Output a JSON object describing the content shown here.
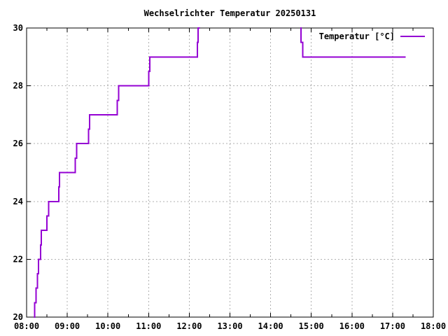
{
  "chart_data": {
    "type": "line",
    "title": "Wechselrichter Temperatur 20250131",
    "xlabel": "",
    "ylabel": "",
    "xlim": [
      8,
      18
    ],
    "ylim": [
      20,
      30
    ],
    "grid": true,
    "x_minor_step": 0.5,
    "x_ticks": [
      {
        "value": 8,
        "label": "08:00"
      },
      {
        "value": 9,
        "label": "09:00"
      },
      {
        "value": 10,
        "label": "10:00"
      },
      {
        "value": 11,
        "label": "11:00"
      },
      {
        "value": 12,
        "label": "12:00"
      },
      {
        "value": 13,
        "label": "13:00"
      },
      {
        "value": 14,
        "label": "14:00"
      },
      {
        "value": 15,
        "label": "15:00"
      },
      {
        "value": 16,
        "label": "16:00"
      },
      {
        "value": 17,
        "label": "17:00"
      },
      {
        "value": 18,
        "label": "18:00"
      }
    ],
    "y_ticks": [
      {
        "value": 20,
        "label": "20"
      },
      {
        "value": 22,
        "label": "22"
      },
      {
        "value": 24,
        "label": "24"
      },
      {
        "value": 26,
        "label": "26"
      },
      {
        "value": 28,
        "label": "28"
      },
      {
        "value": 30,
        "label": "30"
      }
    ],
    "legend": {
      "position": "top-right",
      "label": "Temperatur [°C]"
    },
    "colors": {
      "line": "#9400d3",
      "grid": "#b0b0b0",
      "axis": "#000000",
      "text": "#000000",
      "background": "#ffffff"
    },
    "series": [
      {
        "name": "Temperatur [°C]",
        "mode": "step-after",
        "color": "#9400d3",
        "points": [
          [
            8.18,
            20.0
          ],
          [
            8.2,
            20.5
          ],
          [
            8.23,
            21.0
          ],
          [
            8.27,
            21.5
          ],
          [
            8.29,
            22.0
          ],
          [
            8.34,
            22.5
          ],
          [
            8.36,
            23.0
          ],
          [
            8.5,
            23.5
          ],
          [
            8.54,
            24.0
          ],
          [
            8.79,
            24.5
          ],
          [
            8.81,
            25.0
          ],
          [
            9.2,
            25.5
          ],
          [
            9.23,
            26.0
          ],
          [
            9.52,
            26.5
          ],
          [
            9.55,
            27.0
          ],
          [
            10.23,
            27.5
          ],
          [
            10.26,
            28.0
          ],
          [
            11.0,
            28.5
          ],
          [
            11.03,
            29.0
          ],
          [
            12.2,
            29.5
          ],
          [
            12.22,
            30.0
          ],
          [
            12.24,
            30.7
          ],
          [
            14.75,
            29.5
          ],
          [
            14.79,
            29.0
          ],
          [
            17.32,
            29.0
          ]
        ]
      }
    ]
  }
}
